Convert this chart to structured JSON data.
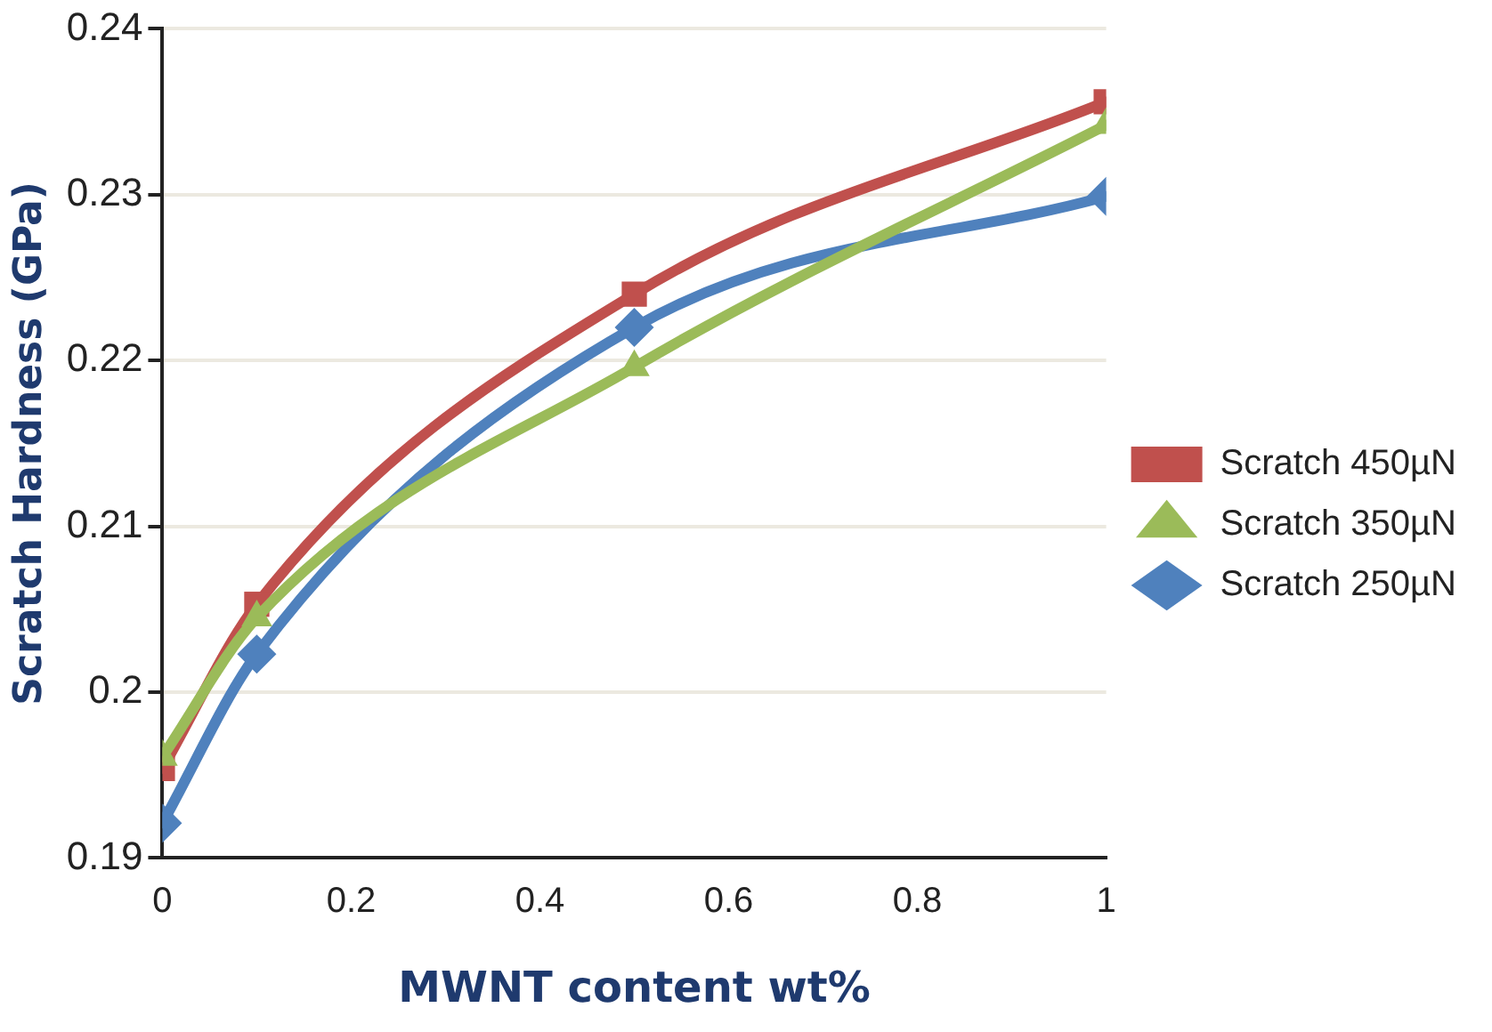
{
  "chart_data": {
    "type": "line",
    "xlabel": "MWNT content wt%",
    "ylabel": "Scratch Hardness (GPa)",
    "x": [
      0,
      0.1,
      0.5,
      1
    ],
    "series": [
      {
        "name": "Scratch 450µN",
        "color": "#c0504d",
        "marker": "square",
        "values": [
          0.1954,
          0.2053,
          0.224,
          0.2356
        ]
      },
      {
        "name": "Scratch 350µN",
        "color": "#9bbb59",
        "marker": "triangle",
        "values": [
          0.1961,
          0.2045,
          0.2196,
          0.2342
        ]
      },
      {
        "name": "Scratch 250µN",
        "color": "#4f81bd",
        "marker": "diamond",
        "values": [
          0.1921,
          0.2023,
          0.222,
          0.2299
        ]
      }
    ],
    "xlim": [
      0,
      1
    ],
    "xticks": [
      0,
      0.2,
      0.4,
      0.6,
      0.8,
      1
    ],
    "ylim": [
      0.19,
      0.24
    ],
    "yticks": [
      0.19,
      0.2,
      0.21,
      0.22,
      0.23,
      0.24
    ],
    "grid": "y",
    "legend": "right",
    "line_style": "solid"
  }
}
